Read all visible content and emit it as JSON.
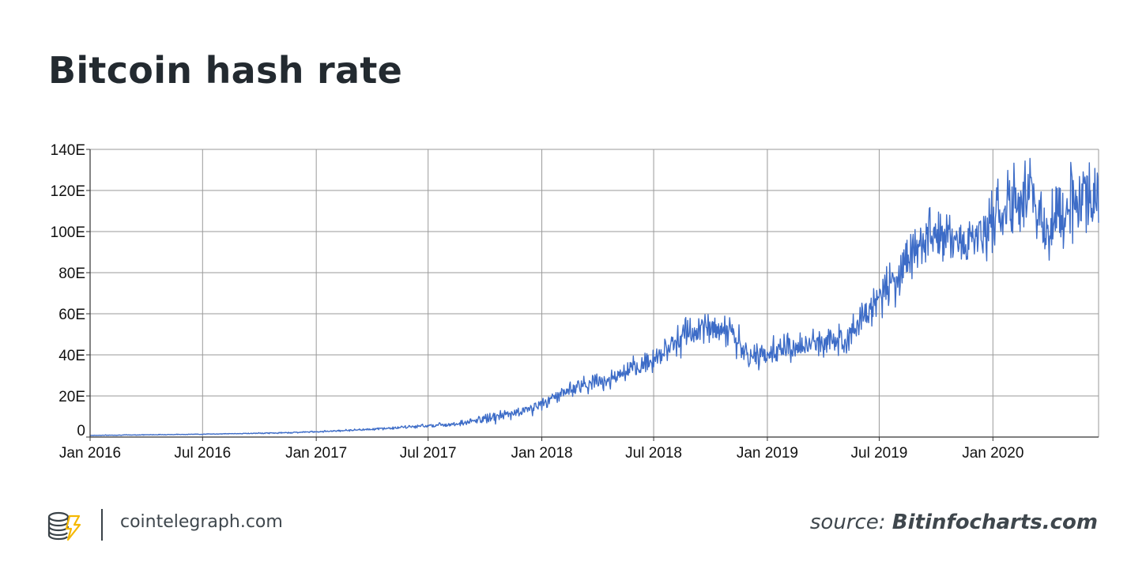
{
  "title": "Bitcoin hash rate",
  "footer": {
    "site": "cointelegraph.com",
    "source_prefix": "source:",
    "source_name": "Bitinfocharts.com",
    "logo_icon": "coin-stack-lightning-icon",
    "logo_colors": {
      "outline": "#3a4248",
      "accent": "#f5b800"
    }
  },
  "chart_data": {
    "type": "line",
    "title": "Bitcoin hash rate",
    "xlabel": "",
    "ylabel": "",
    "xlim": [
      "2016-01-01",
      "2020-06-20"
    ],
    "ylim": [
      0,
      140
    ],
    "y_unit": "E",
    "y_ticks": [
      0,
      20,
      40,
      60,
      80,
      100,
      120,
      140
    ],
    "y_tick_labels": [
      "0",
      "20E",
      "40E",
      "60E",
      "80E",
      "100E",
      "120E",
      "140E"
    ],
    "x_ticks": [
      "2016-01-01",
      "2016-07-01",
      "2017-01-01",
      "2017-07-01",
      "2018-01-01",
      "2018-07-01",
      "2019-01-01",
      "2019-07-01",
      "2020-01-01"
    ],
    "x_tick_labels": [
      "Jan 2016",
      "Jul 2016",
      "Jan 2017",
      "Jul 2017",
      "Jan 2018",
      "Jul 2018",
      "Jan 2019",
      "Jul 2019",
      "Jan 2020"
    ],
    "grid": true,
    "line_color": "#3d6cc7",
    "series": [
      {
        "name": "",
        "x": [
          "2016-01-01",
          "2016-03-01",
          "2016-05-01",
          "2016-07-01",
          "2016-09-01",
          "2016-11-01",
          "2017-01-01",
          "2017-03-01",
          "2017-05-01",
          "2017-07-01",
          "2017-08-01",
          "2017-09-01",
          "2017-10-01",
          "2017-11-01",
          "2017-12-01",
          "2018-01-01",
          "2018-02-01",
          "2018-03-01",
          "2018-04-01",
          "2018-05-01",
          "2018-06-01",
          "2018-07-01",
          "2018-08-01",
          "2018-09-01",
          "2018-10-01",
          "2018-11-01",
          "2018-12-01",
          "2019-01-01",
          "2019-02-01",
          "2019-03-01",
          "2019-04-01",
          "2019-05-01",
          "2019-06-01",
          "2019-07-01",
          "2019-08-01",
          "2019-09-01",
          "2019-10-01",
          "2019-11-01",
          "2019-12-01",
          "2020-01-01",
          "2020-02-01",
          "2020-03-01",
          "2020-04-01",
          "2020-05-01",
          "2020-06-01",
          "2020-06-20"
        ],
        "values": [
          0.8,
          1.0,
          1.2,
          1.4,
          1.7,
          2.0,
          2.6,
          3.4,
          4.3,
          5.6,
          6.2,
          7.0,
          9.0,
          10.5,
          12.5,
          16,
          21,
          25,
          27,
          29,
          33,
          38,
          46,
          51,
          54,
          52,
          38,
          41,
          43,
          44,
          46,
          48,
          56,
          68,
          79,
          94,
          101,
          97,
          95,
          106,
          113,
          118,
          101,
          114,
          118,
          116
        ],
        "amplitude": [
          0.1,
          0.1,
          0.1,
          0.1,
          0.1,
          0.2,
          0.2,
          0.3,
          0.4,
          0.6,
          0.8,
          1.0,
          1.5,
          2.0,
          2.0,
          2.0,
          2.5,
          2.5,
          3.0,
          3.0,
          3.5,
          4.0,
          4.5,
          5.0,
          5.0,
          5.0,
          4.0,
          4.0,
          4.5,
          4.5,
          5.0,
          5.0,
          6.0,
          7.0,
          8.0,
          9.0,
          10.0,
          10.0,
          10.0,
          10.0,
          10.0,
          11.0,
          13.0,
          12.0,
          11.0,
          10.0
        ]
      }
    ]
  }
}
